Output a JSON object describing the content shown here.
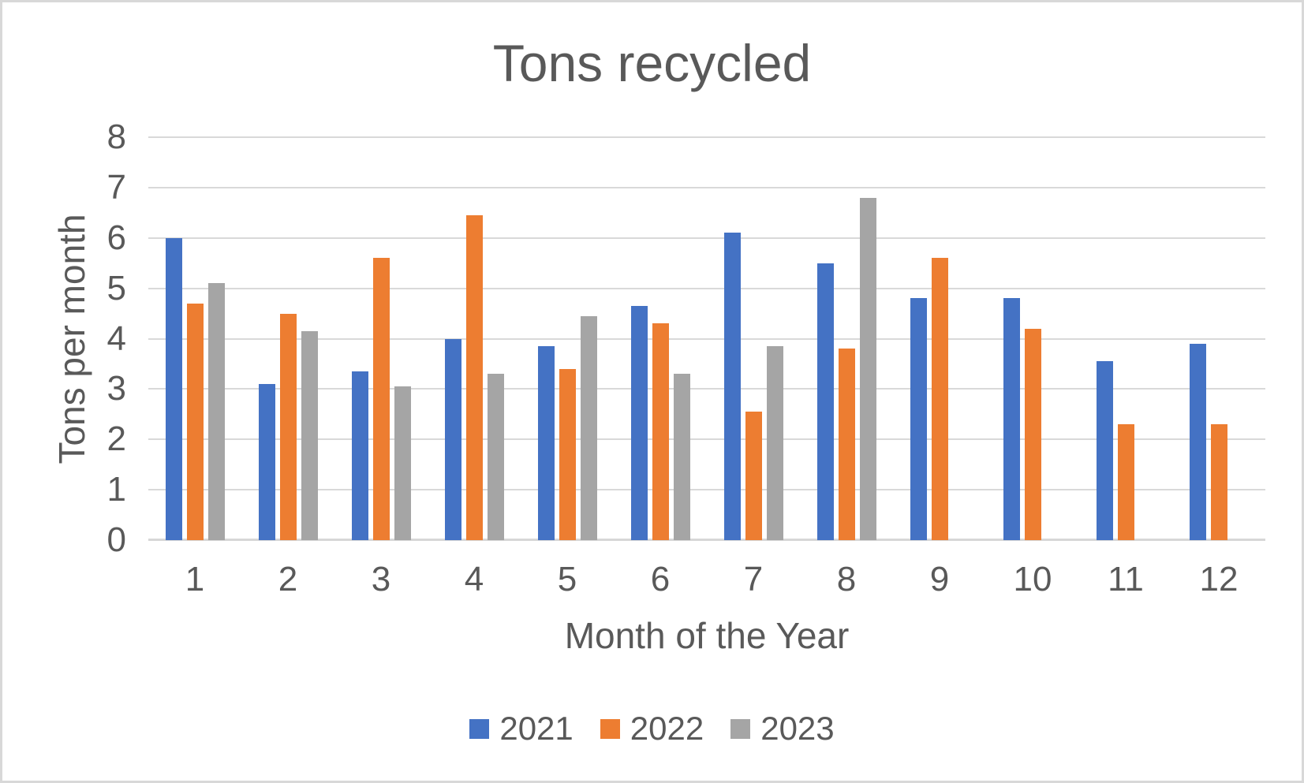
{
  "chart_data": {
    "type": "bar",
    "title": "Tons recycled",
    "xlabel": "Month of the Year",
    "ylabel": "Tons per month",
    "categories": [
      "1",
      "2",
      "3",
      "4",
      "5",
      "6",
      "7",
      "8",
      "9",
      "10",
      "11",
      "12"
    ],
    "series": [
      {
        "name": "2021",
        "color": "#4472C4",
        "values": [
          6.0,
          3.1,
          3.35,
          4.0,
          3.85,
          4.65,
          6.1,
          5.5,
          4.8,
          4.8,
          3.55,
          3.9
        ]
      },
      {
        "name": "2022",
        "color": "#ED7D31",
        "values": [
          4.7,
          4.5,
          5.6,
          6.45,
          3.4,
          4.3,
          2.55,
          3.8,
          5.6,
          4.2,
          2.3,
          2.3
        ]
      },
      {
        "name": "2023",
        "color": "#A5A5A5",
        "values": [
          5.1,
          4.15,
          3.05,
          3.3,
          4.45,
          3.3,
          3.85,
          6.8,
          null,
          null,
          null,
          null
        ]
      }
    ],
    "ylim": [
      0,
      8
    ],
    "yticks": [
      0,
      1,
      2,
      3,
      4,
      5,
      6,
      7,
      8
    ],
    "grid": true,
    "legend_position": "bottom"
  },
  "colors": {
    "text": "#595959",
    "gridline": "#D9D9D9",
    "background": "#FFFFFF",
    "border": "#D8D8D8"
  }
}
